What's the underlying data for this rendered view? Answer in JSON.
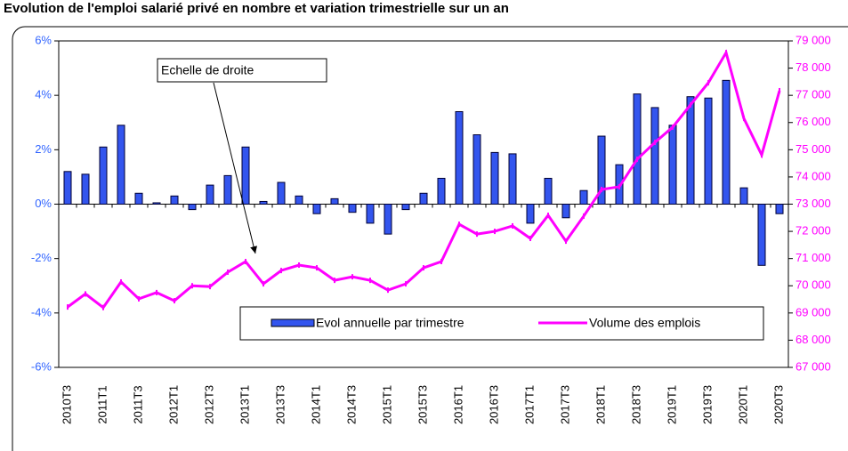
{
  "chart_data": {
    "type": "bar_line",
    "title": "Evolution de l'emploi salarié privé en nombre et variation trimestrielle sur un an",
    "annotation": "Echelle de droite",
    "categories": [
      "2010T3",
      null,
      "2011T1",
      null,
      "2011T3",
      null,
      "2012T1",
      null,
      "2012T3",
      null,
      "2013T1",
      null,
      "2013T3",
      null,
      "2014T1",
      null,
      "2014T3",
      null,
      "2015T1",
      null,
      "2015T3",
      null,
      "2016T1",
      null,
      "2016T3",
      null,
      "2017T1",
      null,
      "2017T3",
      null,
      "2018T1",
      null,
      "2018T3",
      null,
      "2019T1",
      null,
      "2019T3",
      null,
      "2020T1",
      null,
      "2020T3"
    ],
    "series": [
      {
        "name": "Evol annuelle par trimestre",
        "color": "#3355ee",
        "kind": "bar",
        "values": [
          1.2,
          1.1,
          2.1,
          2.9,
          0.4,
          0.05,
          0.3,
          -0.2,
          0.7,
          1.05,
          2.1,
          0.1,
          0.8,
          0.3,
          -0.35,
          0.2,
          -0.3,
          -0.7,
          -1.1,
          -0.2,
          0.4,
          0.95,
          3.4,
          2.55,
          1.9,
          1.85,
          -0.7,
          0.95,
          -0.5,
          0.5,
          2.5,
          1.45,
          4.05,
          3.55,
          2.9,
          3.95,
          3.9,
          4.55,
          0.6,
          -2.25,
          -0.35
        ]
      },
      {
        "name": "Volume des emplois",
        "color": "#ff00ff",
        "kind": "line",
        "axis": "y2",
        "values": [
          69220,
          69700,
          69200,
          70140,
          69520,
          69750,
          69450,
          70000,
          69970,
          70500,
          70890,
          70070,
          70560,
          70760,
          70660,
          70200,
          70330,
          70200,
          69840,
          70070,
          70660,
          70890,
          72260,
          71900,
          72000,
          72200,
          71740,
          72590,
          71640,
          72560,
          73540,
          73640,
          74650,
          75270,
          75830,
          76650,
          77460,
          78570,
          76150,
          74810,
          77170
        ]
      }
    ],
    "ylim": [
      -6,
      6
    ],
    "yticks": [
      {
        "value": -6,
        "label": "-6%"
      },
      {
        "value": -4,
        "label": "-4%"
      },
      {
        "value": -2,
        "label": "-2%"
      },
      {
        "value": 0,
        "label": "0%"
      },
      {
        "value": 2,
        "label": "2%"
      },
      {
        "value": 4,
        "label": "4%"
      },
      {
        "value": 6,
        "label": "6%"
      }
    ],
    "y2lim": [
      67000,
      79000
    ],
    "y2ticks": [
      {
        "value": 67000,
        "label": "67 000"
      },
      {
        "value": 68000,
        "label": "68 000"
      },
      {
        "value": 69000,
        "label": "69 000"
      },
      {
        "value": 70000,
        "label": "70 000"
      },
      {
        "value": 71000,
        "label": "71 000"
      },
      {
        "value": 72000,
        "label": "72 000"
      },
      {
        "value": 73000,
        "label": "73 000"
      },
      {
        "value": 74000,
        "label": "74 000"
      },
      {
        "value": 75000,
        "label": "75 000"
      },
      {
        "value": 76000,
        "label": "76 000"
      },
      {
        "value": 77000,
        "label": "77 000"
      },
      {
        "value": 78000,
        "label": "78 000"
      },
      {
        "value": 79000,
        "label": "79 000"
      }
    ],
    "y2color": "#ff00ff",
    "ycolor": "#3366ff"
  }
}
